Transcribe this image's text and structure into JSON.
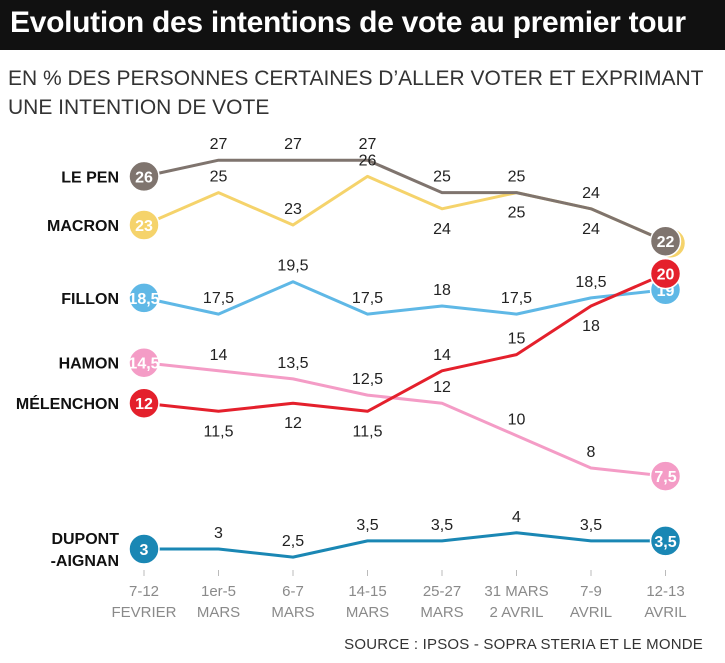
{
  "title": "Evolution des intentions de vote au premier tour",
  "subtitle": "EN % DES PERSONNES CERTAINES D’ALLER VOTER ET EXPRIMANT UNE INTENTION DE VOTE",
  "source": "SOURCE : IPSOS - SOPRA STERIA ET LE MONDE",
  "chart_data": {
    "type": "line",
    "title": "Evolution des intentions de vote au premier tour",
    "ylabel": "",
    "xlabel": "",
    "categories": [
      {
        "line1": "7-12",
        "line2": "FEVRIER"
      },
      {
        "line1": "1er-5",
        "line2": "MARS"
      },
      {
        "line1": "6-7",
        "line2": "MARS"
      },
      {
        "line1": "14-15",
        "line2": "MARS"
      },
      {
        "line1": "25-27",
        "line2": "MARS"
      },
      {
        "line1": "31 MARS",
        "line2": "2 AVRIL"
      },
      {
        "line1": "7-9",
        "line2": "AVRIL"
      },
      {
        "line1": "12-13",
        "line2": "AVRIL"
      }
    ],
    "series": [
      {
        "name": "LE PEN",
        "color": "#7f746e",
        "values": [
          26,
          27,
          27,
          27,
          25,
          25,
          24,
          22
        ],
        "labels": [
          "26",
          "27",
          "27",
          "27",
          "25",
          "25",
          "24",
          "22"
        ],
        "label_pos": [
          "badge",
          "above",
          "above",
          "above",
          "above",
          "above",
          "above",
          "badge"
        ]
      },
      {
        "name": "MACRON",
        "color": "#f5d36b",
        "values": [
          23,
          25,
          23,
          26,
          24,
          25,
          24,
          22
        ],
        "labels": [
          "23",
          "25",
          "23",
          "26",
          "24",
          "25",
          "24",
          ""
        ],
        "label_pos": [
          "badge",
          "above",
          "above",
          "above",
          "below",
          "below",
          "below",
          "badge"
        ]
      },
      {
        "name": "FILLON",
        "color": "#5fb8e6",
        "values": [
          18.5,
          17.5,
          19.5,
          17.5,
          18,
          17.5,
          18.5,
          19
        ],
        "labels": [
          "18,5",
          "17,5",
          "19,5",
          "17,5",
          "18",
          "17,5",
          "18,5",
          "19"
        ],
        "label_pos": [
          "badge",
          "above",
          "above",
          "above",
          "above",
          "above",
          "above",
          "badge"
        ]
      },
      {
        "name": "HAMON",
        "color": "#f49cc6",
        "values": [
          14.5,
          14,
          13.5,
          12.5,
          12,
          10,
          8,
          7.5
        ],
        "labels": [
          "14,5",
          "14",
          "13,5",
          "12,5",
          "12",
          "10",
          "8",
          "7,5"
        ],
        "label_pos": [
          "badge",
          "above",
          "above",
          "above",
          "above",
          "above",
          "above",
          "badge"
        ]
      },
      {
        "name": "MÉLENCHON",
        "color": "#e4202c",
        "values": [
          12,
          11.5,
          12,
          11.5,
          14,
          15,
          18,
          20
        ],
        "labels": [
          "12",
          "11,5",
          "12",
          "11,5",
          "14",
          "15",
          "18",
          "20"
        ],
        "label_pos": [
          "badge",
          "below",
          "below",
          "below",
          "above",
          "above",
          "below",
          "badge"
        ]
      },
      {
        "name": "DUPONT-AIGNAN",
        "name_lines": [
          "DUPONT",
          "-AIGNAN"
        ],
        "color": "#1a87b4",
        "values": [
          3,
          3,
          2.5,
          3.5,
          3.5,
          4,
          3.5,
          3.5
        ],
        "labels": [
          "3",
          "3",
          "2,5",
          "3,5",
          "3,5",
          "4",
          "3,5",
          "3,5"
        ],
        "label_pos": [
          "badge",
          "above",
          "above",
          "above",
          "above",
          "above",
          "above",
          "badge"
        ]
      }
    ]
  }
}
